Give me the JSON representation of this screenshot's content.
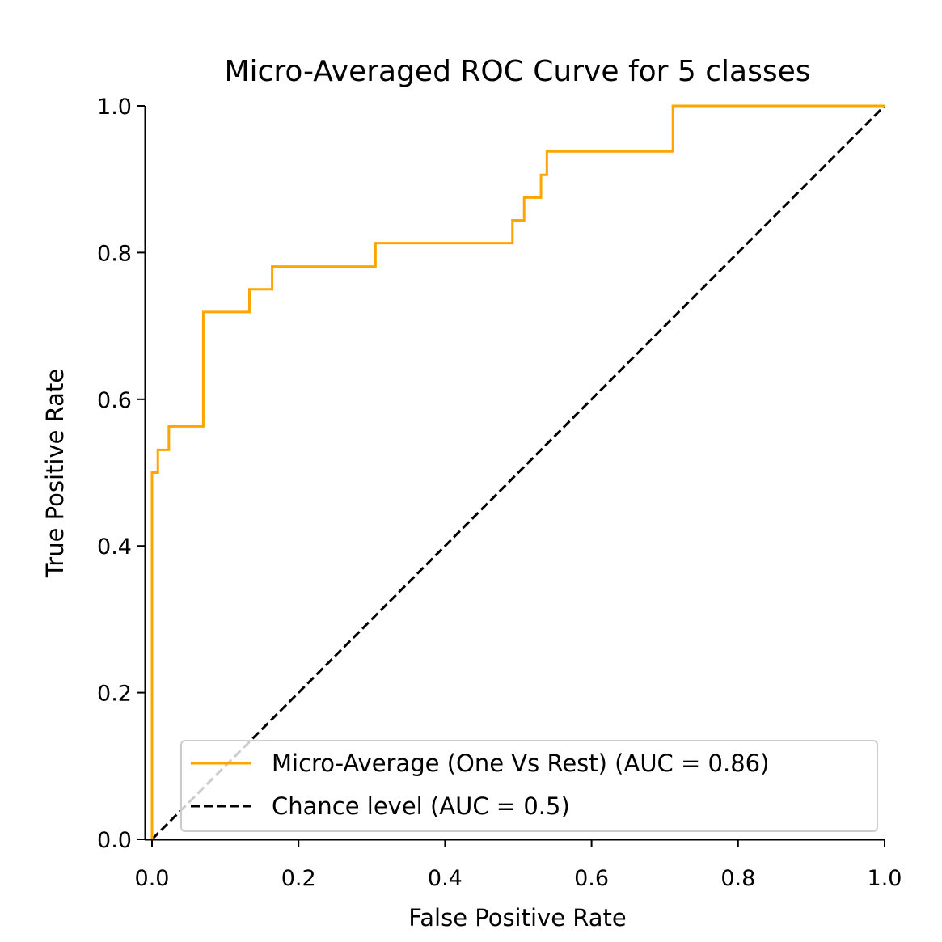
{
  "chart_data": {
    "type": "line",
    "title": "Micro-Averaged ROC Curve for 5 classes",
    "xlabel": "False Positive Rate",
    "ylabel": "True Positive Rate",
    "xlim": [
      0.0,
      1.0
    ],
    "ylim": [
      0.0,
      1.0
    ],
    "x_ticks": [
      "0.0",
      "0.2",
      "0.4",
      "0.6",
      "0.8",
      "1.0"
    ],
    "y_ticks": [
      "0.0",
      "0.2",
      "0.4",
      "0.6",
      "0.8",
      "1.0"
    ],
    "grid": false,
    "legend_position": "lower-right",
    "series": [
      {
        "name": "Micro-Average (One Vs Rest) (AUC = 0.86)",
        "color": "#FFA500",
        "style": "solid",
        "points": [
          [
            0.0,
            0.0
          ],
          [
            0.0,
            0.5
          ],
          [
            0.008,
            0.5
          ],
          [
            0.008,
            0.531
          ],
          [
            0.023,
            0.531
          ],
          [
            0.023,
            0.563
          ],
          [
            0.07,
            0.563
          ],
          [
            0.07,
            0.719
          ],
          [
            0.133,
            0.719
          ],
          [
            0.133,
            0.75
          ],
          [
            0.164,
            0.75
          ],
          [
            0.164,
            0.781
          ],
          [
            0.305,
            0.781
          ],
          [
            0.305,
            0.813
          ],
          [
            0.492,
            0.813
          ],
          [
            0.492,
            0.844
          ],
          [
            0.508,
            0.844
          ],
          [
            0.508,
            0.875
          ],
          [
            0.531,
            0.875
          ],
          [
            0.531,
            0.906
          ],
          [
            0.539,
            0.906
          ],
          [
            0.539,
            0.938
          ],
          [
            0.711,
            0.938
          ],
          [
            0.711,
            1.0
          ],
          [
            1.0,
            1.0
          ]
        ]
      },
      {
        "name": "Chance level (AUC = 0.5)",
        "color": "#000000",
        "style": "dashed",
        "points": [
          [
            0.0,
            0.0
          ],
          [
            1.0,
            1.0
          ]
        ]
      }
    ]
  }
}
